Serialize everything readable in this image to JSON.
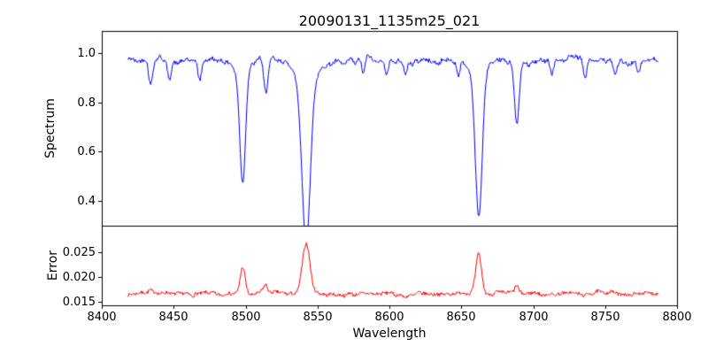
{
  "figure": {
    "title": "20090131_1135m25_021",
    "xlabel": "Wavelength",
    "background": "#ffffff",
    "axis_color": "#000000"
  },
  "axis": {
    "xlim": [
      8400,
      8800
    ],
    "xticks": [
      "8400",
      "8450",
      "8500",
      "8550",
      "8600",
      "8650",
      "8700",
      "8750",
      "8800"
    ]
  },
  "chart_data": [
    {
      "type": "line",
      "panel": "spectrum",
      "ylabel": "Spectrum",
      "series_color": "#0000ff",
      "xlim": [
        8400,
        8800
      ],
      "x_data_range": [
        8418,
        8787
      ],
      "ylim": [
        0.3,
        1.09
      ],
      "yticks": [
        "0.4",
        "0.6",
        "0.8",
        "1.0"
      ],
      "grid": false,
      "legend": "none",
      "continuum": 0.97,
      "noise": {
        "seed": 42,
        "hf_amp": 0.008,
        "mf_amp": 0.02,
        "lf_amp": 0.012
      },
      "absorption_lines": [
        {
          "center": 8498.0,
          "depth": 0.46,
          "sigma": 2.0,
          "min_flux": 0.51
        },
        {
          "center": 8498.0,
          "depth": 0.04,
          "sigma": 5.0
        },
        {
          "center": 8542.1,
          "depth": 0.66,
          "sigma": 2.9,
          "min_flux": 0.31
        },
        {
          "center": 8542.1,
          "depth": 0.08,
          "sigma": 8.0
        },
        {
          "center": 8662.1,
          "depth": 0.59,
          "sigma": 2.4,
          "min_flux": 0.38
        },
        {
          "center": 8662.1,
          "depth": 0.05,
          "sigma": 6.0
        },
        {
          "center": 8688.6,
          "depth": 0.23,
          "sigma": 1.6,
          "min_flux": 0.74
        },
        {
          "center": 8434.0,
          "depth": 0.09,
          "sigma": 1.4
        },
        {
          "center": 8447.0,
          "depth": 0.07,
          "sigma": 1.2
        },
        {
          "center": 8468.0,
          "depth": 0.08,
          "sigma": 1.3
        },
        {
          "center": 8514.0,
          "depth": 0.12,
          "sigma": 1.4
        },
        {
          "center": 8582.0,
          "depth": 0.05,
          "sigma": 1.0
        },
        {
          "center": 8598.0,
          "depth": 0.06,
          "sigma": 1.2
        },
        {
          "center": 8611.0,
          "depth": 0.05,
          "sigma": 1.0
        },
        {
          "center": 8648.0,
          "depth": 0.05,
          "sigma": 1.0
        },
        {
          "center": 8713.0,
          "depth": 0.05,
          "sigma": 1.2
        },
        {
          "center": 8736.0,
          "depth": 0.07,
          "sigma": 1.4
        },
        {
          "center": 8757.0,
          "depth": 0.06,
          "sigma": 1.2
        },
        {
          "center": 8773.0,
          "depth": 0.05,
          "sigma": 1.0
        }
      ]
    },
    {
      "type": "line",
      "panel": "error",
      "ylabel": "Error",
      "series_color": "#ff0000",
      "xlim": [
        8400,
        8800
      ],
      "x_data_range": [
        8418,
        8787
      ],
      "ylim": [
        0.0143,
        0.0304
      ],
      "yticks": [
        "0.015",
        "0.020",
        "0.025"
      ],
      "grid": false,
      "legend": "none",
      "baseline": 0.0167,
      "noise": {
        "seed": 7,
        "hf_amp": 0.00035,
        "mf_amp": 0.0005,
        "lf_amp": 0.0003
      },
      "peaks": [
        {
          "center": 8498.0,
          "amp": 0.0058,
          "sigma": 1.8,
          "max": 0.023
        },
        {
          "center": 8542.1,
          "amp": 0.01,
          "sigma": 2.6,
          "max": 0.027
        },
        {
          "center": 8662.1,
          "amp": 0.008,
          "sigma": 2.0,
          "max": 0.025
        },
        {
          "center": 8514.0,
          "amp": 0.0016,
          "sigma": 1.4
        },
        {
          "center": 8688.6,
          "amp": 0.0013,
          "sigma": 1.2
        },
        {
          "center": 8434.0,
          "amp": 0.0007,
          "sigma": 1.5
        }
      ]
    }
  ]
}
